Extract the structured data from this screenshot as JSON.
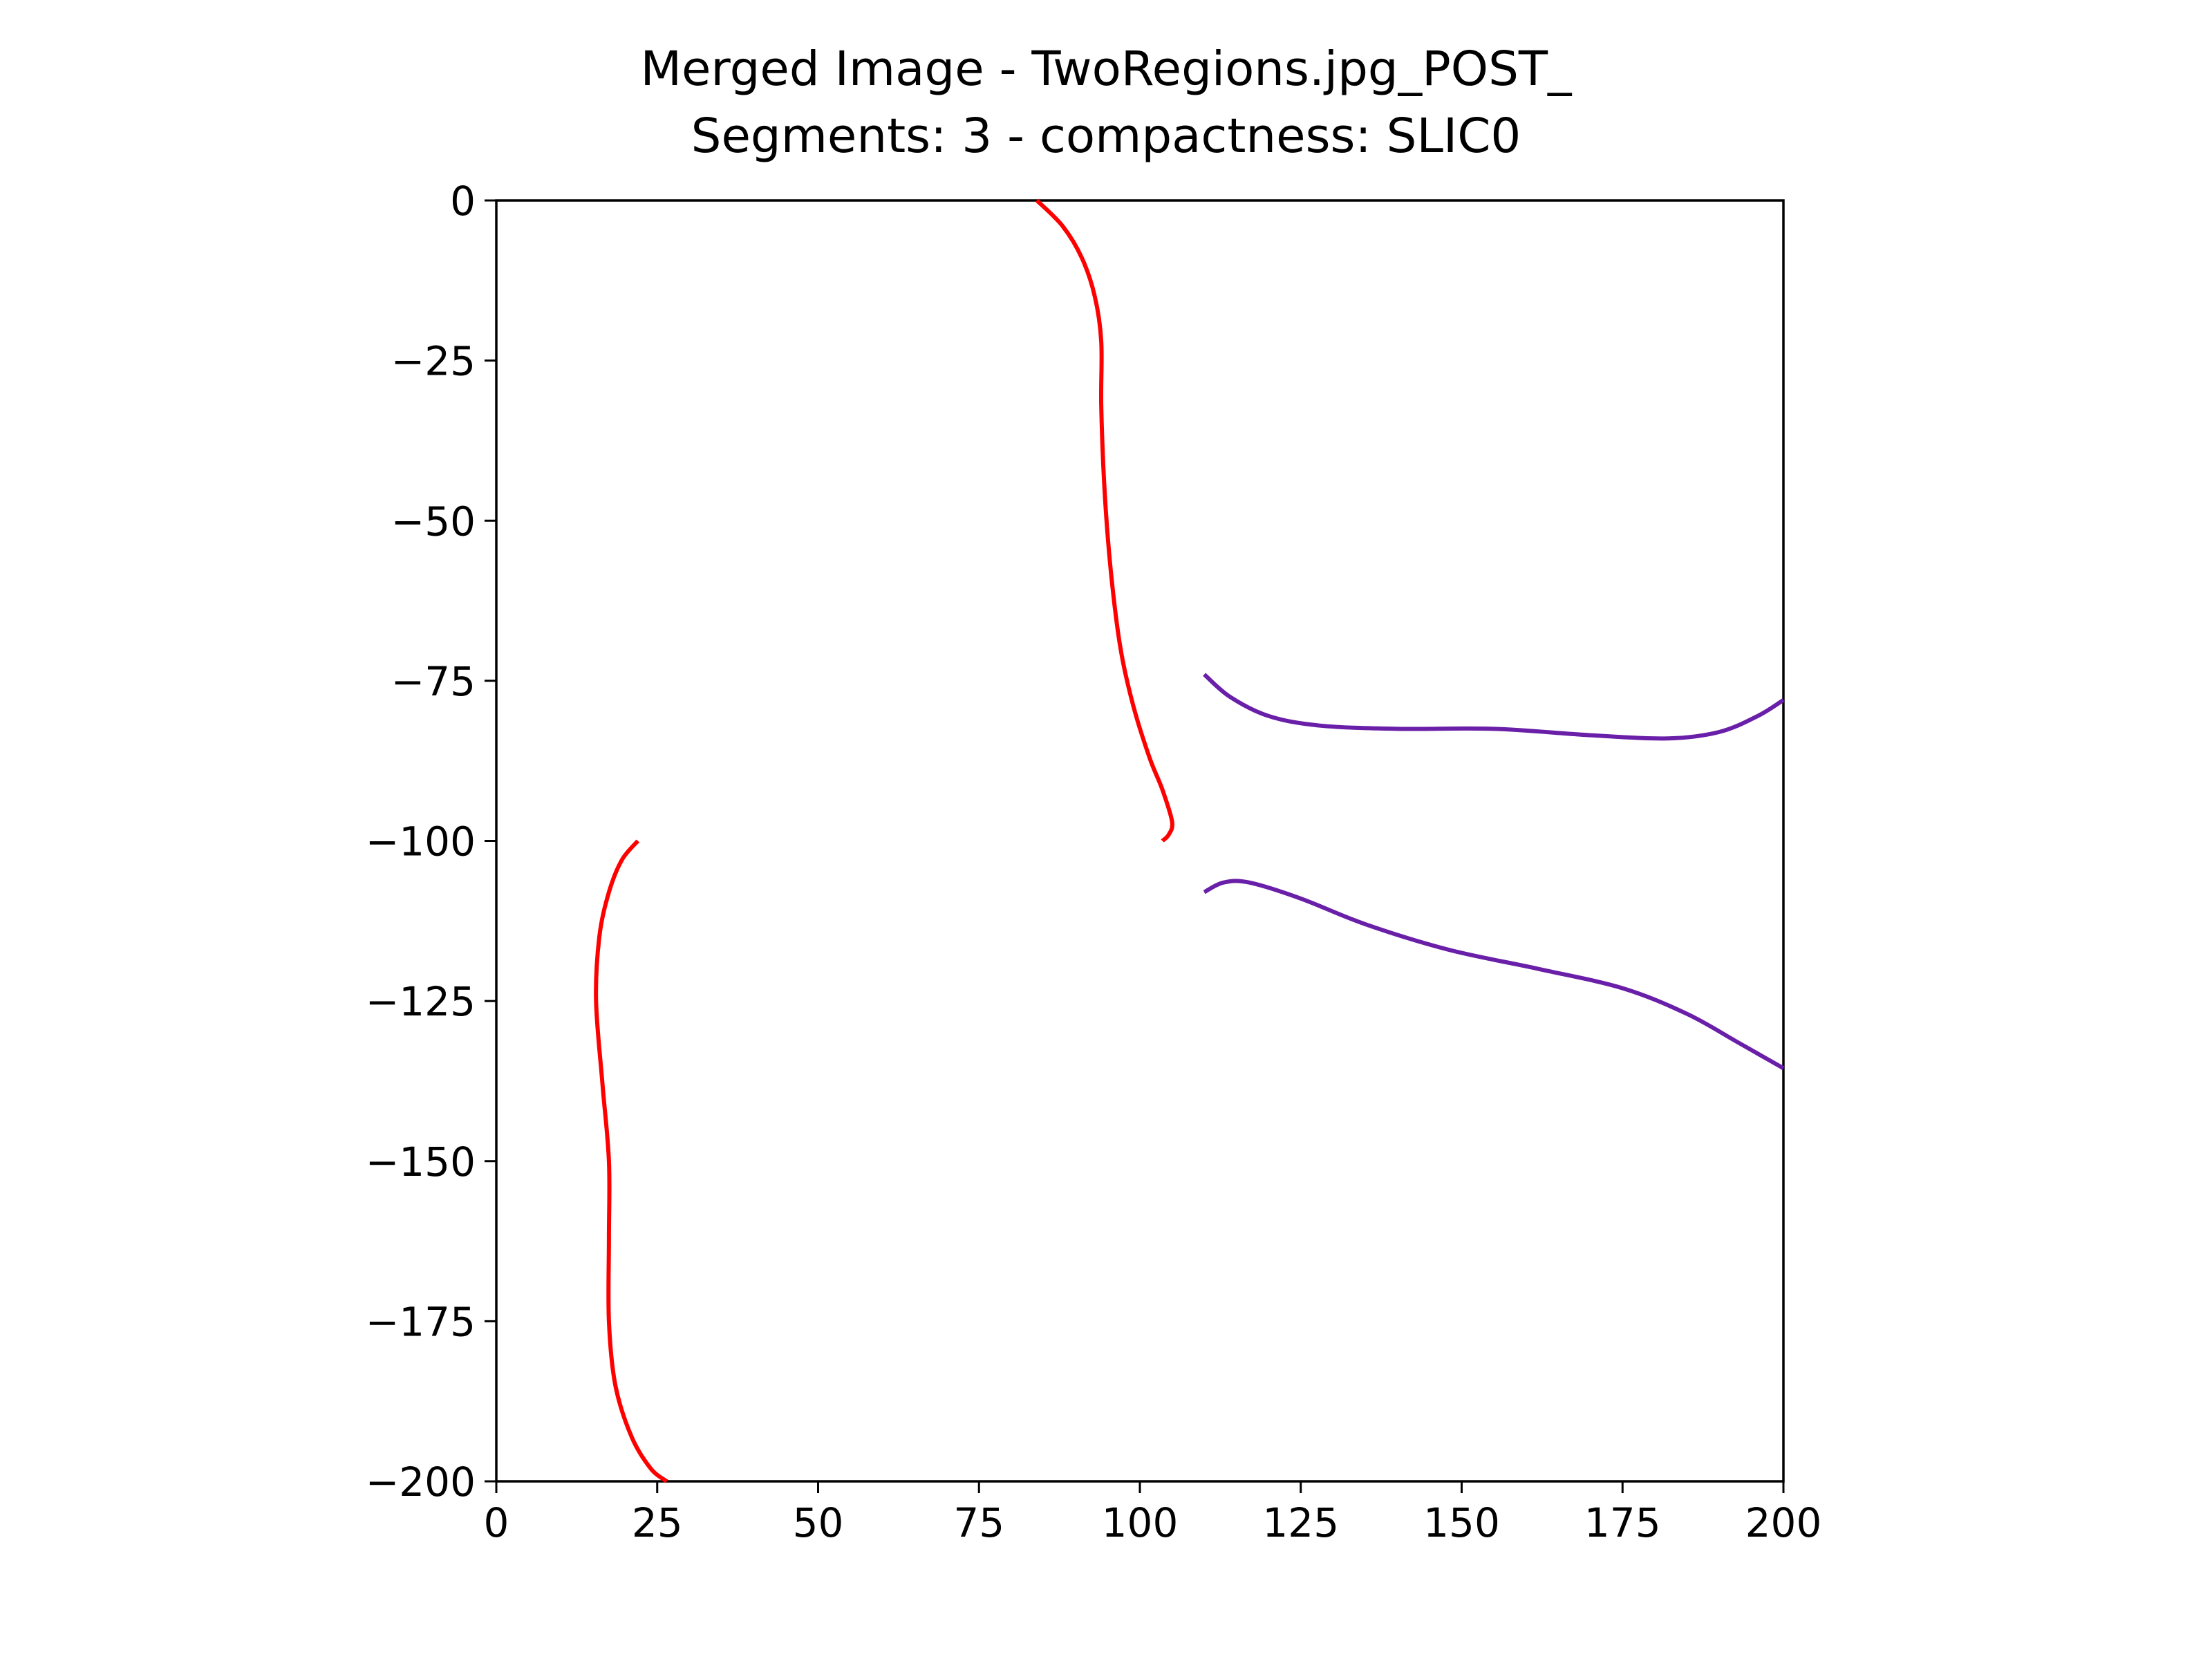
{
  "chart_data": {
    "type": "line",
    "title_line1": "Merged Image - TwoRegions.jpg_POST_",
    "title_line2": "Segments: 3 - compactness: SLIC0",
    "xlabel": "",
    "ylabel": "",
    "xlim": [
      0,
      200
    ],
    "ylim": [
      -200,
      0
    ],
    "grid": false,
    "x_ticks": [
      0,
      25,
      50,
      75,
      100,
      125,
      150,
      175,
      200
    ],
    "x_tick_labels": [
      "0",
      "25",
      "50",
      "75",
      "100",
      "125",
      "150",
      "175",
      "200"
    ],
    "y_ticks": [
      0,
      -25,
      -50,
      -75,
      -100,
      -125,
      -150,
      -175,
      -200
    ],
    "y_tick_labels": [
      "0",
      "−25",
      "−50",
      "−75",
      "−100",
      "−125",
      "−150",
      "−175",
      "−200"
    ],
    "series": [
      {
        "color": "#ff0000",
        "points": [
          [
            84,
            0
          ],
          [
            88,
            -4
          ],
          [
            91,
            -9
          ],
          [
            93,
            -15
          ],
          [
            94,
            -22
          ],
          [
            94,
            -32
          ],
          [
            94.5,
            -45
          ],
          [
            95.5,
            -58
          ],
          [
            97,
            -70
          ],
          [
            99,
            -79
          ],
          [
            101.5,
            -87
          ],
          [
            103.5,
            -92
          ],
          [
            105,
            -97
          ],
          [
            104.5,
            -99
          ],
          [
            103.5,
            -100
          ]
        ]
      },
      {
        "color": "#ff0000",
        "points": [
          [
            22,
            -100
          ],
          [
            19.5,
            -103
          ],
          [
            17.5,
            -108
          ],
          [
            16,
            -115
          ],
          [
            15.5,
            -125
          ],
          [
            16.5,
            -138
          ],
          [
            17.5,
            -150
          ],
          [
            17.5,
            -162
          ],
          [
            17.5,
            -175
          ],
          [
            18.5,
            -185
          ],
          [
            21,
            -193
          ],
          [
            24,
            -198
          ],
          [
            26.5,
            -200
          ]
        ]
      },
      {
        "color": "#6a1fa8",
        "points": [
          [
            110,
            -74
          ],
          [
            114,
            -77.5
          ],
          [
            120,
            -80.5
          ],
          [
            128,
            -82
          ],
          [
            140,
            -82.5
          ],
          [
            155,
            -82.5
          ],
          [
            170,
            -83.5
          ],
          [
            182,
            -84
          ],
          [
            190,
            -83
          ],
          [
            196,
            -80.5
          ],
          [
            200,
            -78
          ]
        ]
      },
      {
        "color": "#6a1fa8",
        "points": [
          [
            110,
            -108
          ],
          [
            113,
            -106.5
          ],
          [
            117,
            -106.5
          ],
          [
            125,
            -109
          ],
          [
            135,
            -113
          ],
          [
            148,
            -117
          ],
          [
            162,
            -120
          ],
          [
            175,
            -123
          ],
          [
            185,
            -127
          ],
          [
            193,
            -131.5
          ],
          [
            200,
            -135.5
          ]
        ]
      }
    ]
  }
}
